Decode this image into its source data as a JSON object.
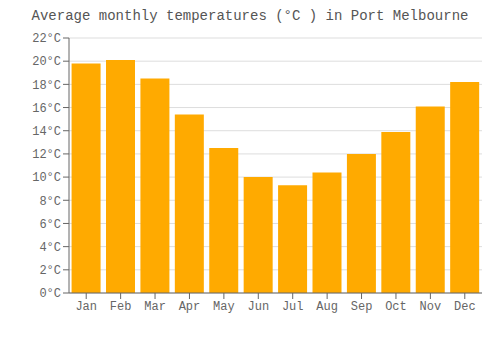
{
  "chart_data": {
    "type": "bar",
    "title": "Average monthly temperatures (°C ) in Port Melbourne",
    "categories": [
      "Jan",
      "Feb",
      "Mar",
      "Apr",
      "May",
      "Jun",
      "Jul",
      "Aug",
      "Sep",
      "Oct",
      "Nov",
      "Dec"
    ],
    "values": [
      19.8,
      20.1,
      18.5,
      15.4,
      12.5,
      10.0,
      9.3,
      10.4,
      12.0,
      13.9,
      16.1,
      18.2
    ],
    "color": "#FFAA00",
    "ylim": [
      0,
      22
    ],
    "yticks": [
      {
        "value": 0,
        "label": "0°C"
      },
      {
        "value": 2,
        "label": "2°C"
      },
      {
        "value": 4,
        "label": "4°C"
      },
      {
        "value": 6,
        "label": "6°C"
      },
      {
        "value": 8,
        "label": "8°C"
      },
      {
        "value": 10,
        "label": "10°C"
      },
      {
        "value": 12,
        "label": "12°C"
      },
      {
        "value": 14,
        "label": "14°C"
      },
      {
        "value": 16,
        "label": "16°C"
      },
      {
        "value": 18,
        "label": "18°C"
      },
      {
        "value": 20,
        "label": "20°C"
      },
      {
        "value": 22,
        "label": "22°C"
      }
    ],
    "grid": true
  }
}
